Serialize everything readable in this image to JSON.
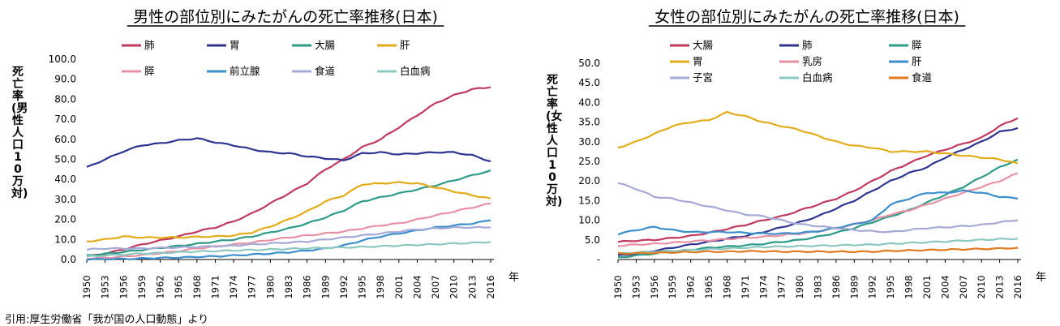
{
  "source_note": "引用:厚生労働省「我が国の人口動態」より",
  "chart_data": [
    {
      "type": "line",
      "title": "男性の部位別にみたがんの死亡率推移(日本)",
      "ylabel": "死亡率(男性人口10万対)",
      "xlabel": "年",
      "ylim": [
        0,
        100
      ],
      "yticks": [
        "0.0",
        "10.0",
        "20.0",
        "30.0",
        "40.0",
        "50.0",
        "60.0",
        "70.0",
        "80.0",
        "90.0",
        "100.0"
      ],
      "x": [
        1950,
        1953,
        1956,
        1959,
        1962,
        1965,
        1968,
        1971,
        1974,
        1977,
        1980,
        1983,
        1986,
        1989,
        1992,
        1995,
        1998,
        2001,
        2004,
        2007,
        2010,
        2013,
        2016
      ],
      "series": [
        {
          "name": "肺",
          "color": "#c0395f",
          "values": [
            1.5,
            3,
            5,
            7.5,
            9.5,
            11.5,
            14,
            16,
            19,
            23,
            28,
            33,
            38,
            45,
            50,
            56,
            60,
            66,
            72,
            78,
            82,
            85,
            86
          ]
        },
        {
          "name": "胃",
          "color": "#2e3591",
          "values": [
            46,
            50,
            54,
            57,
            58,
            59.5,
            60.5,
            58.5,
            57,
            55,
            53.5,
            53,
            51.5,
            50.5,
            49.5,
            53,
            53.5,
            52.5,
            53,
            53.5,
            53.5,
            52,
            49
          ]
        },
        {
          "name": "大腸",
          "color": "#2e9a8a",
          "values": [
            2,
            2.8,
            3.8,
            4.8,
            5.8,
            6.8,
            7.8,
            9,
            10,
            11.5,
            13.5,
            15.5,
            18,
            21,
            24.5,
            29,
            31,
            33,
            35,
            37,
            39.5,
            42,
            44.5
          ]
        },
        {
          "name": "肝",
          "color": "#e2ac1a",
          "values": [
            9,
            10,
            11.5,
            11,
            11,
            11,
            11.3,
            11.5,
            12,
            13.5,
            16.5,
            20,
            24,
            29,
            32,
            37.5,
            38,
            38.5,
            38,
            36,
            34,
            32,
            30.5
          ]
        },
        {
          "name": "膵",
          "color": "#e891a5",
          "values": [
            0.5,
            0.8,
            1.5,
            2.2,
            3.2,
            4.2,
            5.5,
            6.5,
            7.5,
            8.5,
            9.8,
            11,
            12,
            13,
            14,
            15.5,
            17,
            18,
            20,
            22,
            24,
            26,
            28
          ]
        },
        {
          "name": "前立腺",
          "color": "#3d8fcc",
          "values": [
            0.1,
            0.2,
            0.3,
            0.5,
            0.8,
            1,
            1.3,
            1.6,
            2,
            2.5,
            3,
            3.6,
            4.5,
            5.5,
            7,
            9.5,
            11.5,
            13,
            14.5,
            16,
            17,
            18,
            19.5
          ]
        },
        {
          "name": "食道",
          "color": "#a6aad6",
          "values": [
            5,
            5.5,
            5.5,
            5.5,
            5.8,
            6,
            6.3,
            6.6,
            7,
            7.5,
            8,
            8.5,
            9,
            10,
            11,
            12,
            13,
            14,
            15,
            15.5,
            16,
            16,
            16
          ]
        },
        {
          "name": "白血病",
          "color": "#8dc8c0",
          "values": [
            1.5,
            2,
            2.5,
            3,
            3.3,
            3.6,
            4,
            4.2,
            4.5,
            4.8,
            5,
            5.3,
            5.6,
            5.8,
            6,
            6.3,
            6.6,
            7,
            7.3,
            7.6,
            8,
            8.3,
            8.8
          ]
        }
      ]
    },
    {
      "type": "line",
      "title": "女性の部位別にみたがんの死亡率推移(日本)",
      "ylabel": "死亡率(女性人口10万対)",
      "xlabel": "年",
      "ylim": [
        0,
        50
      ],
      "yticks": [
        "-",
        "5.0",
        "10.0",
        "15.0",
        "20.0",
        "25.0",
        "30.0",
        "35.0",
        "40.0",
        "45.0",
        "50.0"
      ],
      "x": [
        1950,
        1953,
        1956,
        1959,
        1962,
        1965,
        1968,
        1971,
        1974,
        1977,
        1980,
        1983,
        1986,
        1989,
        1992,
        1995,
        1998,
        2001,
        2004,
        2007,
        2010,
        2013,
        2016
      ],
      "series": [
        {
          "name": "大腸",
          "color": "#c0395f",
          "values": [
            4.5,
            4.8,
            5,
            5.5,
            6,
            6.8,
            7.8,
            8.8,
            10,
            11,
            12.5,
            14,
            15.5,
            17.5,
            20,
            22.5,
            24.5,
            26.5,
            28,
            29.5,
            31,
            34,
            36
          ]
        },
        {
          "name": "肺",
          "color": "#2e3591",
          "values": [
            1,
            1.5,
            2.2,
            3,
            3.8,
            4.5,
            5.3,
            6,
            7,
            8.2,
            9.5,
            11,
            13,
            15,
            17.5,
            20,
            22,
            23.5,
            26,
            28,
            30,
            32.5,
            33.5
          ]
        },
        {
          "name": "膵",
          "color": "#2e9a8a",
          "values": [
            0.5,
            1,
            1.5,
            2,
            2.5,
            3,
            3.3,
            3.6,
            4,
            4.5,
            5,
            5.8,
            6.8,
            8,
            9.5,
            11,
            12.5,
            14.5,
            16.5,
            18.5,
            21,
            23.5,
            25.5
          ]
        },
        {
          "name": "胃",
          "color": "#e2ac1a",
          "values": [
            28.5,
            30,
            32,
            34,
            35,
            35.5,
            37.5,
            36.5,
            35,
            34,
            33,
            31.5,
            30,
            29,
            28.5,
            27.5,
            27.5,
            27.5,
            27,
            26.5,
            26,
            25.5,
            24.5
          ]
        },
        {
          "name": "乳房",
          "color": "#e891a5",
          "values": [
            3.5,
            3.8,
            4,
            4.3,
            4.6,
            4.9,
            5.2,
            5.5,
            5.8,
            6.2,
            6.6,
            7.2,
            8,
            9,
            10,
            11.5,
            12.5,
            14,
            15.5,
            17,
            18.5,
            20,
            22
          ]
        },
        {
          "name": "肝",
          "color": "#3d8fcc",
          "values": [
            6.5,
            7.5,
            8.3,
            7.5,
            7,
            7,
            7,
            6.8,
            6.6,
            6.6,
            6.8,
            7.2,
            8,
            9,
            10,
            14,
            15.5,
            17,
            17,
            17.5,
            17,
            16,
            15.5
          ]
        },
        {
          "name": "子宮",
          "color": "#a6aad6",
          "values": [
            19.5,
            18,
            16,
            15.5,
            14.5,
            13.5,
            12.5,
            11.5,
            11,
            10,
            9,
            8.5,
            8,
            7.5,
            7.2,
            7,
            7.5,
            8,
            8.2,
            8.5,
            8.8,
            9.5,
            10
          ]
        },
        {
          "name": "白血病",
          "color": "#8dc8c0",
          "values": [
            1.5,
            1.8,
            2,
            2.2,
            2.4,
            2.6,
            2.8,
            3,
            3.2,
            3.3,
            3.4,
            3.5,
            3.6,
            3.7,
            3.8,
            4,
            4.2,
            4.4,
            4.6,
            4.8,
            5,
            5.2,
            5.3
          ]
        },
        {
          "name": "食道",
          "color": "#e07b22",
          "values": [
            1.5,
            1.6,
            1.7,
            1.8,
            1.9,
            2,
            2,
            2.1,
            2.1,
            2,
            2,
            2,
            2,
            2,
            2,
            2.2,
            2.3,
            2.4,
            2.5,
            2.6,
            2.7,
            2.8,
            3
          ]
        }
      ]
    }
  ]
}
